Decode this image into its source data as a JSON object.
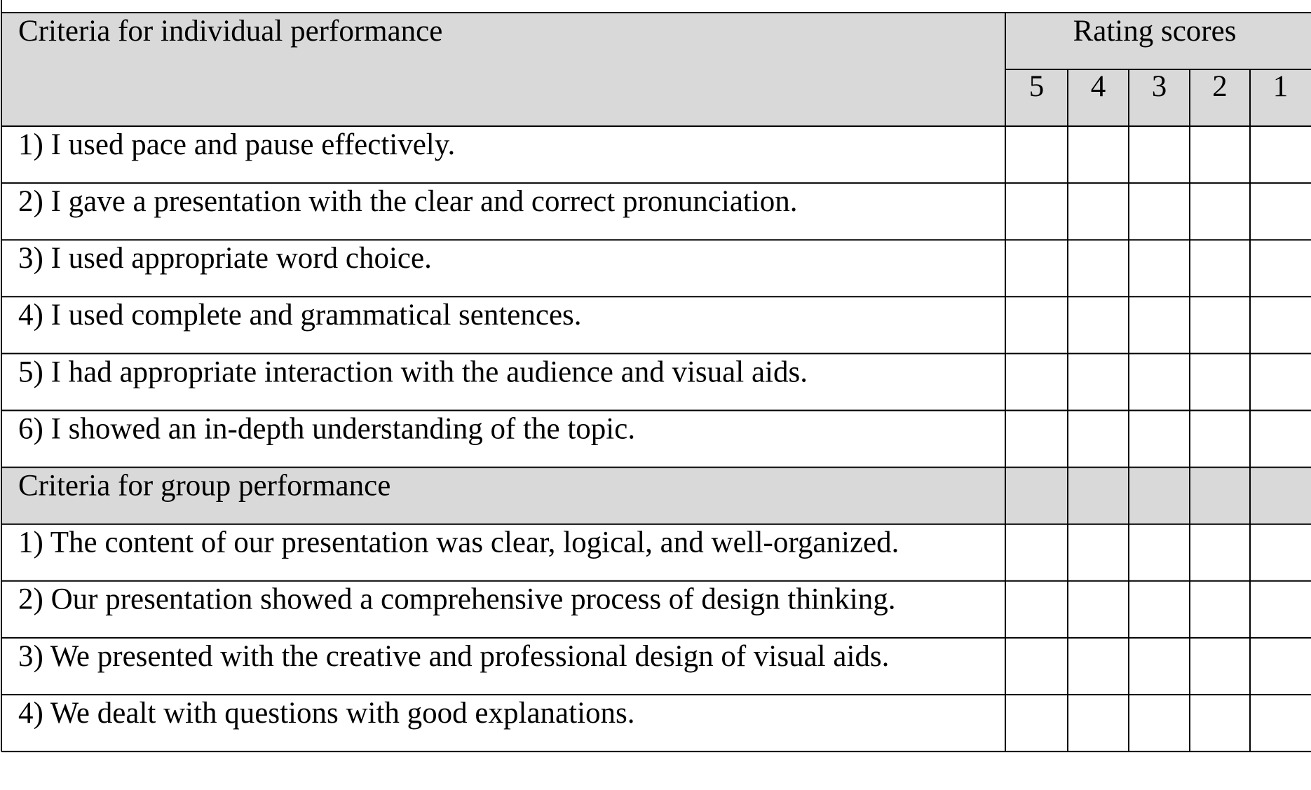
{
  "table": {
    "header": {
      "criteria": "Criteria for individual performance",
      "rating": "Rating scores",
      "scores": [
        "5",
        "4",
        "3",
        "2",
        "1"
      ]
    },
    "individual": [
      "1) I used pace and pause effectively.",
      "2) I gave a presentation with the clear and correct pronunciation.",
      "3) I used appropriate word choice.",
      "4) I used complete and grammatical sentences.",
      "5) I had appropriate interaction with the audience and visual aids.",
      "6) I showed an in-depth understanding of the topic."
    ],
    "group_header": "Criteria for group performance",
    "group": [
      "1) The content of our presentation was clear, logical, and well-organized.",
      "2) Our presentation showed a comprehensive process of design thinking.",
      "3) We presented with the creative and professional design of visual aids.",
      "4) We dealt with questions with good explanations."
    ]
  }
}
